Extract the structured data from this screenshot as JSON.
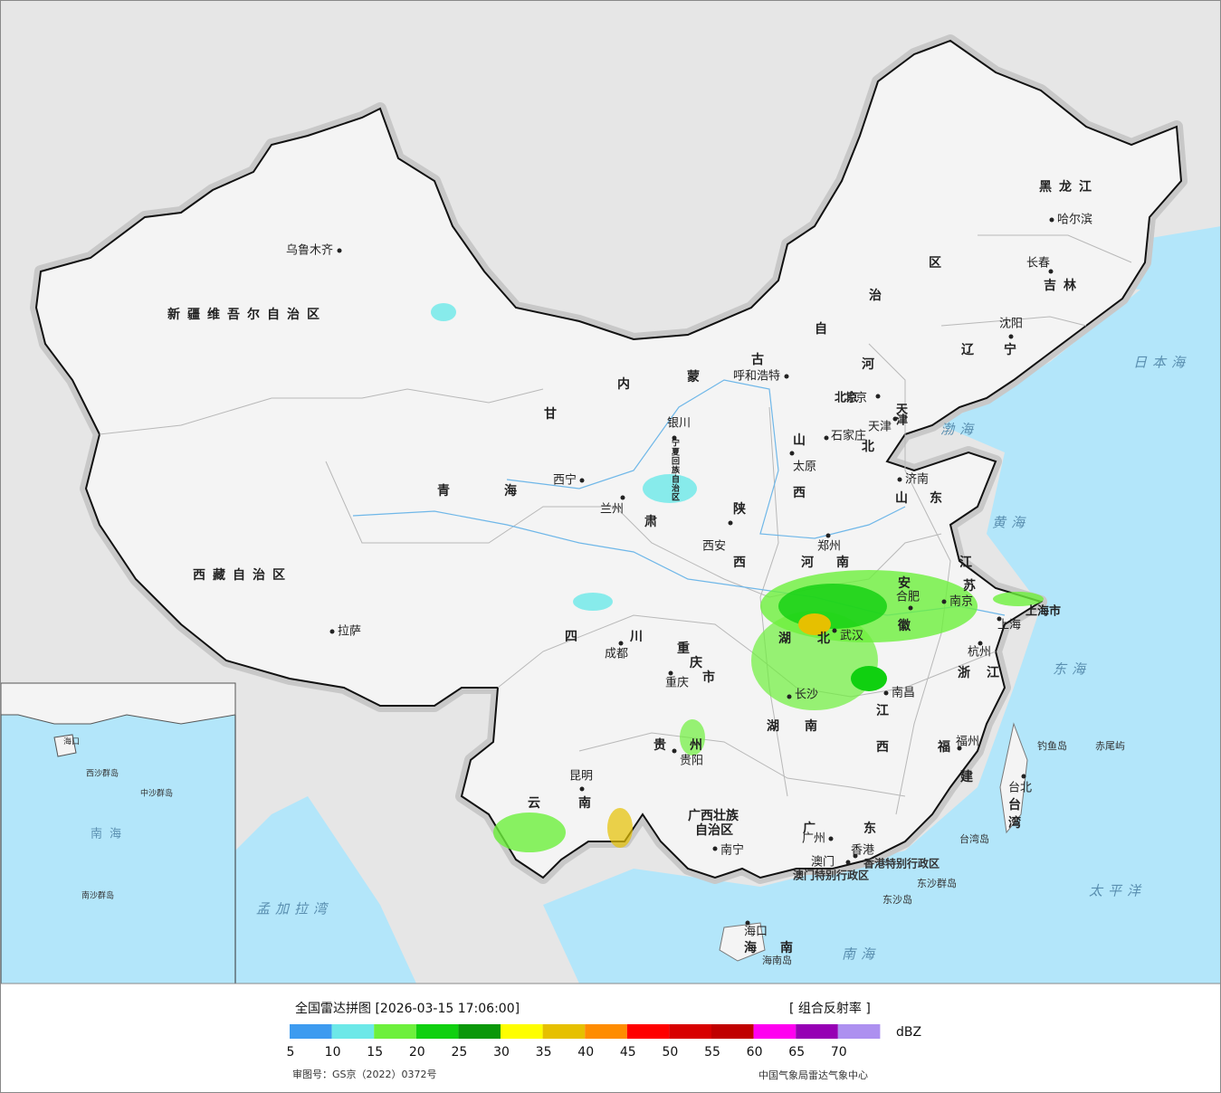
{
  "map": {
    "regions": [
      "新疆维吾尔自治区",
      "西藏自治区",
      "青海",
      "甘肃",
      "内蒙古自治区",
      "宁夏回族自治区",
      "陕西",
      "山西",
      "河北",
      "北京",
      "天津",
      "山东",
      "河南",
      "江苏",
      "安徽",
      "上海市",
      "湖北",
      "湖南",
      "江西",
      "浙江",
      "福建",
      "四川",
      "重庆市",
      "贵州",
      "云南",
      "广西壮族自治区",
      "广东",
      "海南",
      "黑龙江",
      "吉林",
      "辽宁",
      "台湾"
    ],
    "cities": [
      "乌鲁木齐",
      "拉萨",
      "西宁",
      "兰州",
      "银川",
      "呼和浩特",
      "北京",
      "天津",
      "石家庄",
      "太原",
      "济南",
      "郑州",
      "西安",
      "成都",
      "重庆",
      "武汉",
      "合肥",
      "南京",
      "上海",
      "杭州",
      "南昌",
      "长沙",
      "福州",
      "台北",
      "贵阳",
      "昆明",
      "南宁",
      "广州",
      "澳门",
      "香港",
      "海口",
      "长春",
      "哈尔滨",
      "沈阳"
    ],
    "seas": [
      "日本海",
      "渤海",
      "黄海",
      "东海",
      "南海",
      "太平洋",
      "孟加拉湾"
    ],
    "islands": [
      "钓鱼岛",
      "赤尾屿",
      "台湾岛",
      "东沙群岛",
      "东沙岛",
      "海南岛",
      "香港特别行政区",
      "澳门特别行政区"
    ],
    "inset": [
      "南海",
      "中沙群岛",
      "西沙群岛",
      "南沙群岛",
      "海口"
    ]
  },
  "legend": {
    "title": "全国雷达拼图 [2026-03-15 17:06:00]",
    "product": "[ 组合反射率 ]",
    "unit": "dBZ",
    "ticks": [
      5,
      10,
      15,
      20,
      25,
      30,
      35,
      40,
      45,
      50,
      55,
      60,
      65,
      70
    ],
    "colors": [
      "#3d9bf0",
      "#6ce8e8",
      "#6df03c",
      "#10d010",
      "#0a980a",
      "#fefe00",
      "#e6c000",
      "#ff8c00",
      "#ff0000",
      "#d80000",
      "#c00000",
      "#ff00f0",
      "#9600b4",
      "#ad90f0"
    ]
  },
  "footer": {
    "approval": "审图号：GS京（2022）0372号",
    "agency": "中国气象局雷达气象中心"
  }
}
